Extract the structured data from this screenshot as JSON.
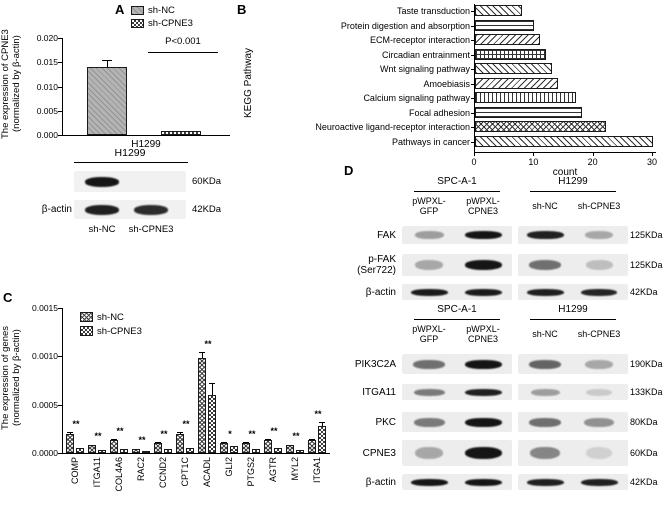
{
  "figure": {
    "panel_labels": {
      "a": "A",
      "b": "B",
      "c": "C",
      "d": "D"
    }
  },
  "chart_data": [
    {
      "id": "A",
      "type": "bar",
      "categories": [
        "sh-NC",
        "sh-CPNE3"
      ],
      "values": [
        0.014,
        0.0008
      ],
      "errors": [
        0.0015,
        0.0003
      ],
      "legend": [
        "sh-NC",
        "sh-CPNE3"
      ],
      "annotation": "P<0.001",
      "xlabel": "H1299",
      "ylabel": "The expression of CPNE3 (normalized by β-actin)",
      "ylabel_lines": [
        "The expression of CPNE3",
        "(normalized by β-actin)"
      ],
      "ylim": [
        0,
        0.02
      ],
      "yticks": [
        0,
        0.005,
        0.01,
        0.015,
        0.02
      ],
      "ytick_labels": [
        "0.000",
        "0.005",
        "0.010",
        "0.015",
        "0.020"
      ]
    },
    {
      "id": "B",
      "type": "bar-horizontal",
      "categories": [
        "Taste transduction",
        "Protein digestion and absorption",
        "ECM-receptor interaction",
        "Circadian entrainment",
        "Wnt signaling pathway",
        "Amoebiasis",
        "Calcium signaling pathway",
        "Focal adhesion",
        "Neuroactive ligand-receptor interaction",
        "Pathways in cancer"
      ],
      "values": [
        8,
        10,
        11,
        12,
        13,
        14,
        17,
        18,
        22,
        30
      ],
      "xlabel": "count",
      "ylabel": "KEGG Pathway",
      "xlim": [
        0,
        30
      ],
      "xticks": [
        0,
        10,
        20,
        30
      ]
    },
    {
      "id": "C",
      "type": "bar",
      "categories": [
        "COMP",
        "ITGA11",
        "COL4A6",
        "RAC2",
        "CCND2",
        "CPT1C",
        "ACADL",
        "GLI2",
        "PTGS2",
        "AGTR",
        "MYL2",
        "ITGA1"
      ],
      "series": [
        {
          "name": "sh-NC",
          "values": [
            0.0002,
            8e-05,
            0.00013,
            4e-05,
            0.0001,
            0.0002,
            0.00098,
            0.0001,
            0.0001,
            0.00013,
            8e-05,
            0.00013
          ],
          "errors": [
            2e-05,
            1e-05,
            1.5e-05,
            1e-05,
            1.5e-05,
            2e-05,
            6e-05,
            1.5e-05,
            1.5e-05,
            2e-05,
            1e-05,
            2e-05
          ]
        },
        {
          "name": "sh-CPNE3",
          "values": [
            5e-05,
            3e-05,
            4e-05,
            2e-05,
            4e-05,
            5e-05,
            0.0006,
            7e-05,
            4e-05,
            5e-05,
            3e-05,
            0.00028
          ],
          "errors": [
            1e-05,
            1e-05,
            1e-05,
            1e-05,
            1e-05,
            1e-05,
            0.00012,
            1e-05,
            1e-05,
            1e-05,
            1e-05,
            4e-05
          ]
        }
      ],
      "significance": [
        "**",
        "**",
        "**",
        "**",
        "**",
        "**",
        "**",
        "*",
        "**",
        "**",
        "**",
        "**"
      ],
      "ylabel": "The expression of genes (normalized by β-actin)",
      "ylabel_lines": [
        "The expression of genes",
        "(normalized by β-actin)"
      ],
      "ylim": [
        0,
        0.0015
      ],
      "yticks": [
        0,
        0.0005,
        0.001,
        0.0015
      ],
      "ytick_labels": [
        "0.0000",
        "0.0005",
        "0.0010",
        "0.0015"
      ]
    }
  ],
  "panel_a": {
    "blot": {
      "header": "H1299",
      "rows": [
        {
          "protein": "",
          "kda": "60KDa",
          "bands": [
            0.95,
            0.05
          ]
        },
        {
          "protein": "β-actin",
          "kda": "42KDa",
          "bands": [
            0.9,
            0.85
          ]
        }
      ],
      "lanes": [
        "sh-NC",
        "sh-CPNE3"
      ]
    }
  },
  "panel_d": {
    "blocks": [
      {
        "groups": [
          {
            "name": "SPC-A-1",
            "lanes": [
              "pWPXL-|GFP",
              "pWPXL-|CPNE3"
            ]
          },
          {
            "name": "H1299",
            "lanes": [
              "sh-NC",
              "sh-CPNE3"
            ]
          }
        ],
        "rows": [
          {
            "protein": "FAK",
            "protein2": "",
            "kda": "125KDa",
            "bands": [
              0.35,
              0.95,
              0.9,
              0.3
            ]
          },
          {
            "protein": "p-FAK",
            "protein2": "(Ser722)",
            "kda": "125KDa",
            "bands": [
              0.3,
              0.95,
              0.55,
              0.2
            ]
          },
          {
            "protein": "β-actin",
            "protein2": "",
            "kda": "42KDa",
            "bands": [
              0.92,
              0.92,
              0.9,
              0.88
            ]
          }
        ]
      },
      {
        "groups": [
          {
            "name": "SPC-A-1",
            "lanes": [
              "pWPXL-|GFP",
              "pWPXL-|CPNE3"
            ]
          },
          {
            "name": "H1299",
            "lanes": [
              "sh-NC",
              "sh-CPNE3"
            ]
          }
        ],
        "rows": [
          {
            "protein": "PIK3C2A",
            "protein2": "",
            "kda": "190KDa",
            "bands": [
              0.55,
              0.95,
              0.6,
              0.3
            ]
          },
          {
            "protein": "ITGA11",
            "protein2": "",
            "kda": "133KDa",
            "bands": [
              0.5,
              0.9,
              0.35,
              0.15
            ]
          },
          {
            "protein": "PKC",
            "protein2": "",
            "kda": "80KDa",
            "bands": [
              0.5,
              0.95,
              0.55,
              0.4
            ]
          },
          {
            "protein": "CPNE3",
            "protein2": "",
            "kda": "60KDa",
            "bands": [
              0.3,
              0.95,
              0.45,
              0.12
            ]
          },
          {
            "protein": "β-actin",
            "protein2": "",
            "kda": "42KDa",
            "bands": [
              0.95,
              0.95,
              0.9,
              0.9
            ]
          }
        ]
      }
    ]
  }
}
